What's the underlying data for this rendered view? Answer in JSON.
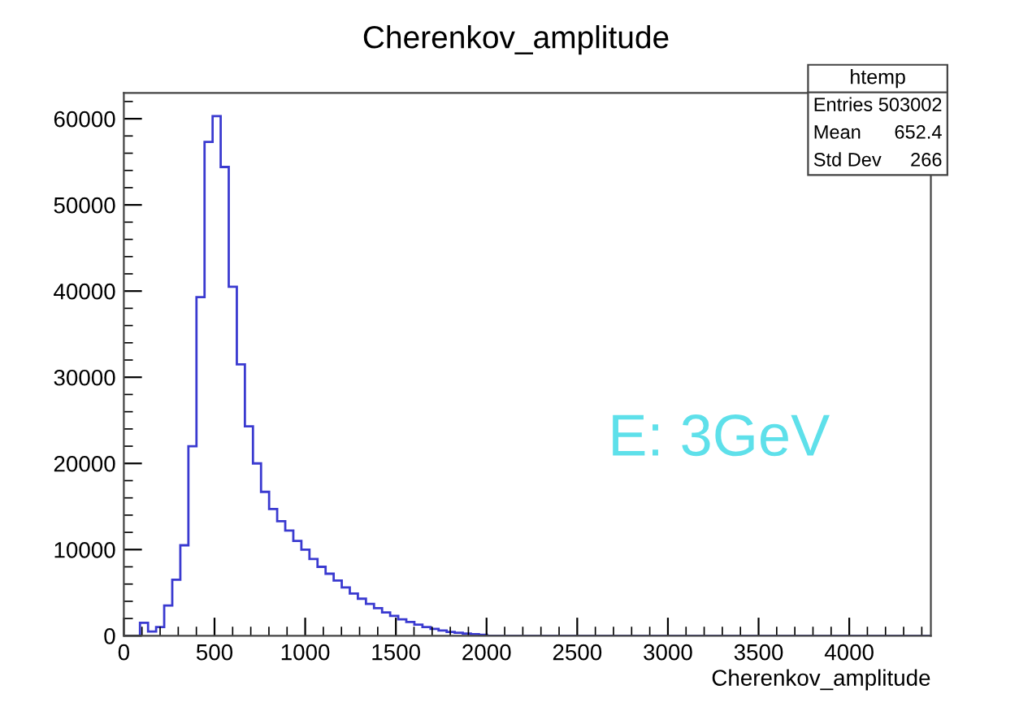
{
  "chart_data": {
    "type": "histogram",
    "title": "Cherenkov_amplitude",
    "xlabel": "Cherenkov_amplitude",
    "bins": [
      0,
      44.5,
      89,
      133.5,
      178,
      222.5,
      267,
      311.5,
      356,
      400.5,
      445,
      489.5,
      534,
      578.5,
      623,
      667.5,
      712,
      756.5,
      801,
      845.5,
      890,
      934.5,
      979,
      1023.5,
      1068,
      1112.5,
      1157,
      1201.5,
      1246,
      1290.5,
      1335,
      1379.5,
      1424,
      1468.5,
      1513,
      1557.5,
      1602,
      1646.5,
      1691,
      1735.5,
      1780,
      1824.5,
      1869,
      1913.5,
      1958,
      2002.5,
      2047,
      2091.5,
      2136,
      2180.5,
      2225,
      2269.5,
      2314,
      2358.5,
      2403,
      2447.5,
      2492,
      2536.5,
      2581,
      2625.5,
      2670,
      2714.5,
      2759,
      2803.5,
      2848,
      2892.5,
      2937,
      2981.5,
      3026,
      3070.5,
      3115,
      3159.5,
      3204,
      3248.5,
      3293,
      3337.5,
      3382,
      3426.5,
      3471,
      3515.5,
      3560,
      3604.5,
      3649,
      3693.5,
      3738,
      3782.5,
      3827,
      3871.5,
      3916,
      3960.5,
      4005,
      4049.5,
      4094,
      4138.5,
      4183,
      4227.5,
      4272,
      4316.5,
      4361,
      4405.5,
      4450
    ],
    "values": [
      0,
      0,
      1500,
      500,
      1000,
      3500,
      6500,
      10500,
      22000,
      39300,
      57300,
      60300,
      54400,
      40500,
      31500,
      24300,
      20000,
      16700,
      14700,
      13300,
      12200,
      11000,
      10000,
      8900,
      8000,
      7200,
      6400,
      5600,
      4900,
      4300,
      3700,
      3200,
      2700,
      2300,
      1900,
      1600,
      1300,
      1000,
      800,
      600,
      450,
      350,
      250,
      180,
      120,
      0,
      0,
      0,
      0,
      0,
      0,
      0,
      0,
      0,
      0,
      0,
      0,
      0,
      0,
      0,
      0,
      0,
      0,
      0,
      0,
      0,
      0,
      0,
      0,
      0,
      0,
      0,
      0,
      0,
      0,
      0,
      0,
      0,
      0,
      0,
      0,
      0,
      0,
      0,
      0,
      0,
      0,
      0,
      0,
      0,
      0,
      0,
      0,
      0,
      0,
      0,
      0,
      0,
      0,
      0
    ],
    "color": "#3a3ad0",
    "xlim": [
      0,
      4450
    ],
    "xticks": [
      0,
      500,
      1000,
      1500,
      2000,
      2500,
      3000,
      3500,
      4000
    ],
    "ylim": [
      0,
      63000
    ],
    "yticks": [
      0,
      10000,
      20000,
      30000,
      40000,
      50000,
      60000
    ],
    "grid": false,
    "legend": false,
    "annotations": [
      "htemp",
      "Entries",
      "503002",
      "Mean",
      "652.4",
      "Std Dev",
      "266",
      "E: 3GeV"
    ]
  }
}
